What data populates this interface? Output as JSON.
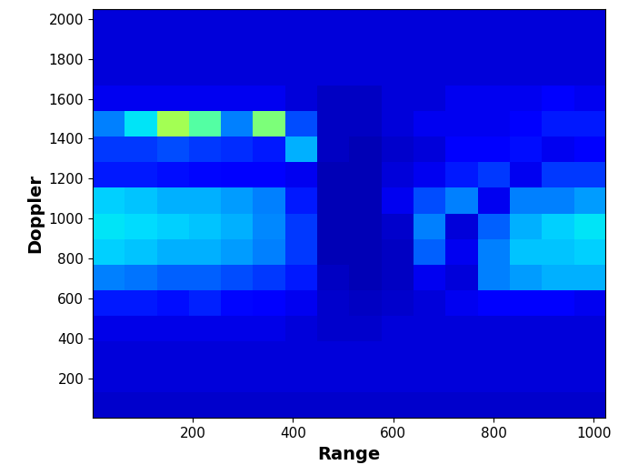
{
  "chart_data": {
    "type": "heatmap",
    "x_label": "Range",
    "y_label": "Doppler",
    "xlim": [
      0,
      1024
    ],
    "ylim": [
      0,
      2048
    ],
    "xticks": [
      200,
      400,
      600,
      800,
      1000
    ],
    "yticks": [
      200,
      400,
      600,
      800,
      1000,
      1200,
      1400,
      1600,
      1800,
      2000
    ],
    "color_range": [
      0,
      1
    ],
    "cells": [
      [
        0.07,
        0.07,
        0.07,
        0.07,
        0.07,
        0.07,
        0.07,
        0.07,
        0.07,
        0.07,
        0.07,
        0.07,
        0.07,
        0.07,
        0.07,
        0.07
      ],
      [
        0.08,
        0.08,
        0.08,
        0.08,
        0.08,
        0.08,
        0.08,
        0.08,
        0.08,
        0.08,
        0.08,
        0.08,
        0.08,
        0.08,
        0.08,
        0.08
      ],
      [
        0.08,
        0.08,
        0.08,
        0.08,
        0.08,
        0.08,
        0.08,
        0.08,
        0.08,
        0.08,
        0.08,
        0.08,
        0.08,
        0.08,
        0.08,
        0.08
      ],
      [
        0.09,
        0.09,
        0.09,
        0.09,
        0.09,
        0.09,
        0.08,
        0.07,
        0.07,
        0.08,
        0.08,
        0.08,
        0.08,
        0.08,
        0.08,
        0.08
      ],
      [
        0.15,
        0.15,
        0.14,
        0.16,
        0.13,
        0.12,
        0.1,
        0.07,
        0.06,
        0.07,
        0.08,
        0.1,
        0.12,
        0.12,
        0.12,
        0.1
      ],
      [
        0.25,
        0.24,
        0.22,
        0.22,
        0.2,
        0.18,
        0.15,
        0.06,
        0.05,
        0.06,
        0.1,
        0.08,
        0.25,
        0.28,
        0.3,
        0.3
      ],
      [
        0.33,
        0.32,
        0.3,
        0.3,
        0.28,
        0.25,
        0.18,
        0.05,
        0.05,
        0.06,
        0.22,
        0.1,
        0.25,
        0.32,
        0.32,
        0.33
      ],
      [
        0.35,
        0.34,
        0.33,
        0.32,
        0.3,
        0.26,
        0.18,
        0.05,
        0.05,
        0.07,
        0.25,
        0.08,
        0.22,
        0.3,
        0.33,
        0.35
      ],
      [
        0.33,
        0.32,
        0.3,
        0.3,
        0.28,
        0.25,
        0.15,
        0.05,
        0.05,
        0.1,
        0.2,
        0.25,
        0.1,
        0.25,
        0.25,
        0.28
      ],
      [
        0.15,
        0.15,
        0.14,
        0.13,
        0.12,
        0.12,
        0.1,
        0.05,
        0.05,
        0.08,
        0.1,
        0.15,
        0.18,
        0.1,
        0.18,
        0.18
      ],
      [
        0.18,
        0.18,
        0.2,
        0.18,
        0.17,
        0.15,
        0.3,
        0.06,
        0.05,
        0.07,
        0.08,
        0.12,
        0.12,
        0.14,
        0.1,
        0.12
      ],
      [
        0.25,
        0.35,
        0.55,
        0.45,
        0.25,
        0.5,
        0.2,
        0.06,
        0.06,
        0.08,
        0.1,
        0.1,
        0.1,
        0.12,
        0.15,
        0.15
      ],
      [
        0.1,
        0.1,
        0.1,
        0.1,
        0.1,
        0.1,
        0.08,
        0.06,
        0.06,
        0.08,
        0.08,
        0.1,
        0.1,
        0.1,
        0.12,
        0.1
      ],
      [
        0.08,
        0.08,
        0.08,
        0.08,
        0.08,
        0.08,
        0.08,
        0.08,
        0.08,
        0.08,
        0.08,
        0.08,
        0.08,
        0.08,
        0.08,
        0.08
      ],
      [
        0.08,
        0.08,
        0.08,
        0.08,
        0.08,
        0.08,
        0.08,
        0.08,
        0.08,
        0.08,
        0.08,
        0.08,
        0.08,
        0.08,
        0.08,
        0.08
      ],
      [
        0.08,
        0.08,
        0.08,
        0.08,
        0.08,
        0.08,
        0.08,
        0.08,
        0.08,
        0.08,
        0.08,
        0.08,
        0.08,
        0.08,
        0.08,
        0.08
      ]
    ]
  }
}
